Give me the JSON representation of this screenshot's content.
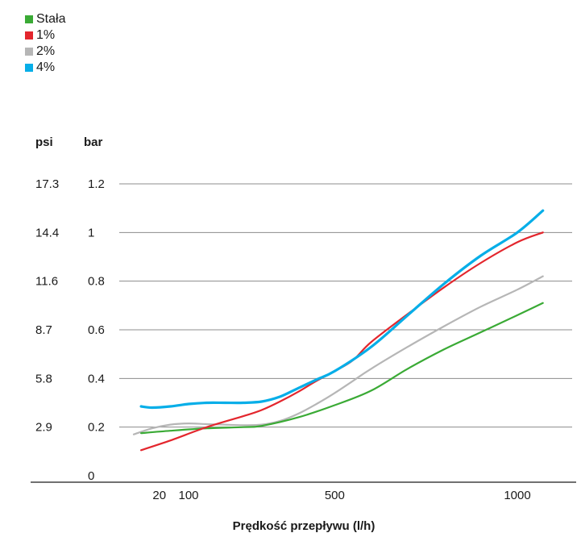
{
  "chart_data": {
    "type": "line",
    "xlabel": "Prędkość przepływu (l/h)",
    "x_ticks": [
      "20",
      "100",
      "500",
      "1000"
    ],
    "x_tick_values": [
      20,
      100,
      500,
      1000
    ],
    "xlim": [
      -100,
      1150
    ],
    "y_units": [
      "psi",
      "bar"
    ],
    "ylim": [
      0,
      1.2
    ],
    "y_ticks_bar": [
      "1.2",
      "1",
      "0.8",
      "0.6",
      "0.4",
      "0.2",
      "0"
    ],
    "y_ticks_psi": [
      "17.3",
      "14.4",
      "11.6",
      "8.7",
      "5.8",
      "2.9",
      ""
    ],
    "grid": true,
    "legend_position": "top-left",
    "series": [
      {
        "name": "Stała",
        "color": "#3aaa35",
        "x": [
          -30,
          50,
          150,
          250,
          300,
          400,
          500,
          600,
          700,
          800,
          900,
          1000,
          1070
        ],
        "y": [
          0.175,
          0.185,
          0.195,
          0.2,
          0.205,
          0.24,
          0.29,
          0.35,
          0.44,
          0.52,
          0.59,
          0.66,
          0.71
        ]
      },
      {
        "name": "1%",
        "color": "#e3262d",
        "x": [
          -30,
          50,
          150,
          250,
          300,
          350,
          400,
          450,
          500,
          550,
          600,
          700,
          800,
          900,
          1000,
          1070
        ],
        "y": [
          0.105,
          0.145,
          0.2,
          0.245,
          0.27,
          0.305,
          0.345,
          0.39,
          0.43,
          0.475,
          0.55,
          0.665,
          0.775,
          0.875,
          0.96,
          1.0
        ]
      },
      {
        "name": "2%",
        "color": "#b6b6b6",
        "x": [
          -50,
          0,
          50,
          100,
          150,
          200,
          250,
          300,
          350,
          400,
          450,
          500,
          550,
          600,
          700,
          800,
          900,
          1000,
          1070
        ],
        "y": [
          0.17,
          0.195,
          0.21,
          0.215,
          0.212,
          0.21,
          0.208,
          0.21,
          0.225,
          0.255,
          0.295,
          0.34,
          0.39,
          0.44,
          0.53,
          0.615,
          0.695,
          0.765,
          0.82
        ]
      },
      {
        "name": "4%",
        "color": "#06aee8",
        "x": [
          -30,
          0,
          50,
          100,
          150,
          200,
          250,
          300,
          350,
          400,
          450,
          500,
          600,
          700,
          800,
          900,
          1000,
          1070
        ],
        "y": [
          0.285,
          0.28,
          0.285,
          0.295,
          0.3,
          0.3,
          0.3,
          0.305,
          0.325,
          0.36,
          0.395,
          0.43,
          0.53,
          0.66,
          0.79,
          0.905,
          1.0,
          1.09
        ]
      }
    ]
  }
}
